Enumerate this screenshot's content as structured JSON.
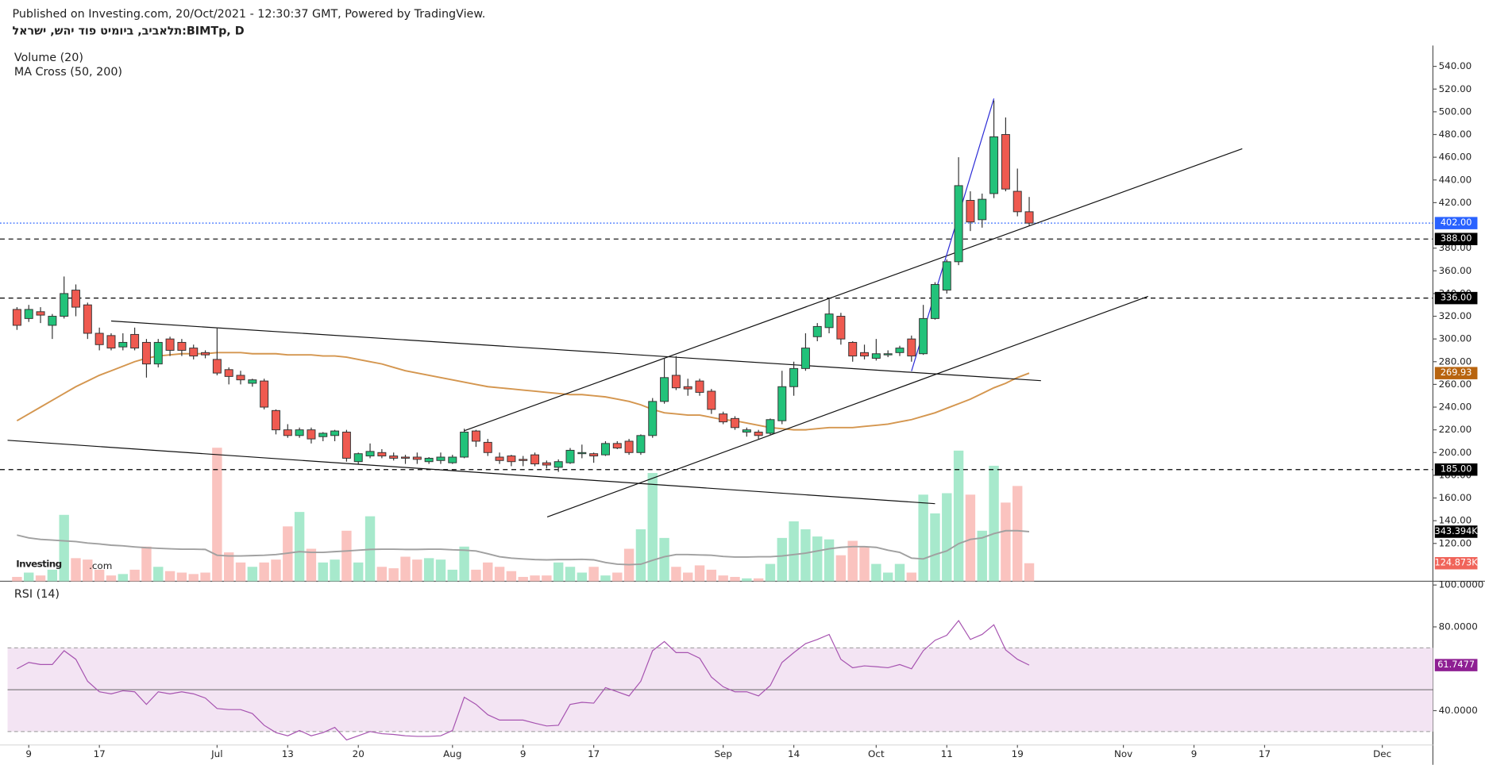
{
  "chart_data": {
    "type": "candlestick",
    "published": "Published on Investing.com, 20/Oct/2021 - 12:30:37 GMT, Powered by TradingView.",
    "title": "תלאביב, ביומיט פוד יהש, ישראל:BIMTp, D",
    "indicator_labels": [
      "Volume (20)",
      "MA Cross (50, 200)"
    ],
    "rsi_title": "RSI (14)",
    "logo": [
      "Investing",
      ".com"
    ],
    "xlim": [
      -0.8,
      120.3
    ],
    "xticks": [
      {
        "value": 1,
        "label": "9"
      },
      {
        "value": 7,
        "label": "17"
      },
      {
        "value": 17,
        "label": "Jul"
      },
      {
        "value": 23,
        "label": "13"
      },
      {
        "value": 29,
        "label": "20"
      },
      {
        "value": 37,
        "label": "Aug"
      },
      {
        "value": 43,
        "label": "9"
      },
      {
        "value": 49,
        "label": "17"
      },
      {
        "value": 60,
        "label": "Sep"
      },
      {
        "value": 66,
        "label": "14"
      },
      {
        "value": 73,
        "label": "Oct"
      },
      {
        "value": 79,
        "label": "11"
      },
      {
        "value": 85,
        "label": "19"
      },
      {
        "value": 94,
        "label": "Nov"
      },
      {
        "value": 100,
        "label": "9"
      },
      {
        "value": 106,
        "label": "17"
      },
      {
        "value": 116,
        "label": "Dec"
      }
    ],
    "ylim": [
      86.7,
      558.3
    ],
    "yticks": [
      {
        "value": 120,
        "label": "120.00"
      },
      {
        "value": 140,
        "label": "140.00"
      },
      {
        "value": 160,
        "label": "160.00"
      },
      {
        "value": 180,
        "label": "180.00"
      },
      {
        "value": 200,
        "label": "200.00"
      },
      {
        "value": 220,
        "label": "220.00"
      },
      {
        "value": 240,
        "label": "240.00"
      },
      {
        "value": 260,
        "label": "260.00"
      },
      {
        "value": 280,
        "label": "280.00"
      },
      {
        "value": 300,
        "label": "300.00"
      },
      {
        "value": 320,
        "label": "320.00"
      },
      {
        "value": 340,
        "label": "340.00"
      },
      {
        "value": 360,
        "label": "360.00"
      },
      {
        "value": 380,
        "label": "380.00"
      },
      {
        "value": 420,
        "label": "420.00"
      },
      {
        "value": 440,
        "label": "440.00"
      },
      {
        "value": 460,
        "label": "460.00"
      },
      {
        "value": 480,
        "label": "480.00"
      },
      {
        "value": 500,
        "label": "500.00"
      },
      {
        "value": 520,
        "label": "520.00"
      },
      {
        "value": 540,
        "label": "540.00"
      }
    ],
    "up_color": "#22c27a",
    "down_color": "#ef5a50",
    "volume_up_color": "#a7e9cc",
    "volume_down_color": "#fac3bf",
    "open": [
      326,
      318,
      324,
      312,
      320,
      343,
      330,
      305,
      303,
      293,
      304,
      297,
      278,
      300,
      297,
      292,
      288,
      282,
      273,
      268,
      261,
      263,
      237,
      220,
      215,
      220,
      214,
      215,
      218,
      192,
      197,
      200,
      197,
      196,
      196,
      192,
      193,
      191,
      196,
      219,
      209,
      196,
      197,
      194,
      198,
      191,
      187,
      191,
      199,
      199,
      198,
      208,
      210,
      200,
      215,
      245,
      268,
      258,
      263,
      254,
      234,
      230,
      218,
      218,
      217,
      228,
      258,
      274,
      302,
      310,
      320,
      297,
      288,
      283,
      286,
      288,
      300,
      287,
      318,
      343,
      368,
      422,
      405,
      428,
      480,
      430,
      412
    ],
    "high": [
      328,
      330,
      328,
      322,
      355,
      348,
      332,
      310,
      305,
      305,
      310,
      300,
      300,
      302,
      300,
      295,
      290,
      310,
      275,
      272,
      265,
      265,
      238,
      225,
      222,
      222,
      218,
      220,
      220,
      200,
      208,
      203,
      200,
      198,
      200,
      196,
      200,
      198,
      221,
      220,
      212,
      200,
      198,
      197,
      200,
      193,
      194,
      204,
      207,
      200,
      210,
      210,
      212,
      216,
      248,
      283,
      285,
      265,
      265,
      256,
      236,
      232,
      222,
      220,
      230,
      272,
      280,
      305,
      314,
      335,
      323,
      298,
      295,
      300,
      290,
      294,
      303,
      330,
      350,
      370,
      460,
      430,
      428,
      510,
      495,
      450,
      425
    ],
    "low": [
      308,
      315,
      314,
      300,
      318,
      320,
      300,
      290,
      290,
      290,
      290,
      266,
      275,
      285,
      285,
      282,
      283,
      268,
      260,
      260,
      258,
      238,
      216,
      213,
      213,
      208,
      210,
      210,
      192,
      190,
      195,
      195,
      193,
      190,
      190,
      190,
      190,
      190,
      195,
      205,
      197,
      190,
      188,
      188,
      188,
      186,
      183,
      190,
      195,
      191,
      197,
      203,
      198,
      198,
      213,
      243,
      255,
      250,
      250,
      234,
      225,
      220,
      214,
      212,
      215,
      225,
      250,
      272,
      298,
      305,
      295,
      280,
      282,
      281,
      284,
      285,
      280,
      286,
      317,
      340,
      365,
      395,
      398,
      424,
      430,
      408,
      400
    ],
    "close": [
      312,
      326,
      321,
      320,
      340,
      328,
      305,
      295,
      292,
      297,
      292,
      278,
      297,
      290,
      290,
      285,
      286,
      270,
      267,
      264,
      264,
      240,
      220,
      215,
      220,
      212,
      217,
      219,
      195,
      199,
      201,
      197,
      195,
      195,
      194,
      195,
      196,
      196,
      218,
      210,
      200,
      193,
      192,
      193,
      190,
      189,
      192,
      202,
      200,
      197,
      208,
      204,
      200,
      215,
      245,
      266,
      257,
      256,
      253,
      238,
      227,
      222,
      220,
      215,
      229,
      258,
      274,
      292,
      311,
      322,
      300,
      285,
      285,
      287,
      287,
      292,
      285,
      318,
      348,
      368,
      435,
      403,
      423,
      478,
      432,
      412,
      402
    ],
    "volume_ylim": [
      0,
      3711
    ],
    "volume": [
      30,
      60,
      40,
      80,
      460,
      160,
      150,
      80,
      40,
      50,
      80,
      240,
      100,
      70,
      60,
      50,
      60,
      925,
      200,
      130,
      100,
      130,
      150,
      380,
      480,
      225,
      130,
      150,
      350,
      130,
      450,
      100,
      90,
      170,
      150,
      160,
      150,
      80,
      240,
      80,
      130,
      100,
      70,
      30,
      40,
      40,
      130,
      100,
      60,
      100,
      40,
      60,
      225,
      360,
      750,
      300,
      100,
      60,
      110,
      80,
      40,
      30,
      20,
      20,
      120,
      300,
      415,
      360,
      310,
      290,
      180,
      280,
      240,
      120,
      60,
      120,
      60,
      600,
      470,
      610,
      905,
      600,
      350,
      800,
      545,
      660,
      124.873
    ],
    "volume_ma": {
      "color": "#a0a0a0",
      "values": [
        320,
        300,
        290,
        285,
        280,
        275,
        265,
        258,
        250,
        245,
        238,
        232,
        228,
        225,
        222,
        222,
        220,
        180,
        175,
        175,
        178,
        180,
        185,
        195,
        205,
        200,
        200,
        205,
        210,
        215,
        220,
        222,
        222,
        220,
        220,
        222,
        222,
        218,
        215,
        210,
        190,
        170,
        160,
        155,
        150,
        148,
        150,
        150,
        152,
        148,
        130,
        118,
        115,
        118,
        145,
        170,
        185,
        185,
        182,
        180,
        172,
        168,
        168,
        170,
        170,
        175,
        185,
        195,
        210,
        225,
        235,
        240,
        240,
        235,
        215,
        200,
        160,
        155,
        185,
        210,
        260,
        290,
        300,
        330,
        350,
        350,
        343.394
      ]
    },
    "ma50": {
      "color": "#d4964f",
      "values": [
        228,
        234,
        240,
        246,
        252,
        258,
        263,
        268,
        272,
        276,
        280,
        283,
        285,
        286,
        287,
        287,
        287,
        288,
        288,
        288,
        287,
        287,
        287,
        286,
        286,
        286,
        285,
        285,
        284,
        282,
        280,
        278,
        275,
        272,
        270,
        268,
        266,
        264,
        262,
        260,
        258,
        257,
        256,
        255,
        254,
        253,
        252,
        251,
        251,
        250,
        249,
        247,
        245,
        242,
        238,
        235,
        234,
        233,
        233,
        231,
        229,
        228,
        226,
        224,
        222,
        221,
        220,
        220,
        221,
        222,
        222,
        222,
        223,
        224,
        225,
        227,
        229,
        232,
        235,
        239,
        243,
        247,
        252,
        257,
        261,
        266,
        269.93
      ]
    },
    "rsi": {
      "color": "#a653b0",
      "band_color": "#f3e4f3",
      "band": [
        30,
        70
      ],
      "mid": 50,
      "ylim": [
        23.6,
        101.8
      ],
      "yticks": [
        {
          "value": 40,
          "label": "40.0000"
        },
        {
          "value": 80,
          "label": "80.0000"
        },
        {
          "value": 100,
          "label": "100.0000"
        }
      ],
      "values": [
        60,
        63,
        62,
        62,
        68.6,
        64.5,
        54,
        49,
        48,
        49.5,
        49,
        43,
        49,
        48,
        49,
        48,
        46,
        41,
        40.5,
        40.5,
        38.6,
        33,
        29.5,
        28,
        30.5,
        28,
        29.5,
        32,
        26,
        28,
        30,
        29,
        28.6,
        28,
        27.7,
        27.7,
        28,
        30.5,
        46.4,
        43,
        38,
        35.5,
        35.5,
        35.5,
        34,
        32.7,
        33,
        43,
        44,
        43.6,
        51,
        49,
        47,
        54,
        68.6,
        73,
        67.7,
        67.7,
        65,
        56,
        51.4,
        49,
        49,
        47,
        52,
        63,
        67.7,
        72,
        74,
        76.4,
        64.5,
        60.5,
        61.4,
        61,
        60.5,
        62,
        60,
        68.6,
        73.6,
        76,
        83,
        74,
        76.4,
        81,
        69,
        64.5,
        61.7477
      ]
    },
    "price_labels": [
      {
        "value": 402,
        "label": "402.00",
        "color": "#2962ff",
        "line": "dotted"
      },
      {
        "value": 388,
        "label": "388.00",
        "color": "#000000",
        "line": "dashed"
      },
      {
        "value": 336,
        "label": "336.00",
        "color": "#000000",
        "line": "dashed"
      },
      {
        "value": 269.93,
        "label": "269.93",
        "color": "#b8640f"
      },
      {
        "value": 185,
        "label": "185.00",
        "color": "#000000",
        "line": "dashed"
      }
    ],
    "volume_labels": [
      {
        "value": 343.394,
        "label": "343.394K",
        "color": "#000000"
      },
      {
        "value": 124.873,
        "label": "124.873K",
        "color": "#f0645a"
      }
    ],
    "rsi_label": {
      "value": 61.7477,
      "label": "61.7477",
      "color": "#8e1f93"
    },
    "drawings": [
      {
        "from": [
          8,
          315.8
        ],
        "to": [
          87,
          263.3
        ],
        "color": "#111111"
      },
      {
        "from": [
          -0.8,
          210.8
        ],
        "to": [
          78,
          155
        ],
        "color": "#111111"
      },
      {
        "from": [
          38,
          219.2
        ],
        "to": [
          104.1,
          467.5
        ],
        "color": "#111111"
      },
      {
        "from": [
          45.05,
          143.3
        ],
        "to": [
          96.1,
          337.5
        ],
        "color": "#111111"
      },
      {
        "from": [
          76,
          271.7
        ],
        "to": [
          83,
          511.7
        ],
        "color": "#2b2bd6"
      }
    ]
  }
}
